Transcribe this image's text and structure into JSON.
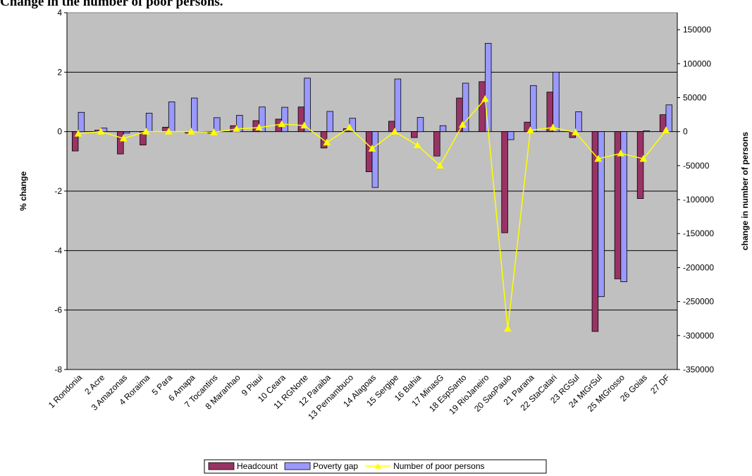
{
  "chart_data": {
    "type": "bar",
    "title": "Change in the number of poor persons.",
    "ylabel_left": "% change",
    "ylabel_right": "change in number of persons",
    "ylim_left": [
      -8,
      4
    ],
    "yticks_left": [
      -8,
      -6,
      -4,
      -2,
      0,
      2,
      4
    ],
    "ylim_right": [
      -350000,
      175000
    ],
    "yticks_right": [
      -350000,
      -300000,
      -250000,
      -200000,
      -150000,
      -100000,
      -50000,
      0,
      50000,
      100000,
      150000
    ],
    "grid": "horizontal",
    "legend_position": "bottom",
    "categories": [
      "1 Rondonia",
      "2 Acre",
      "3 Amazonas",
      "4 Roraima",
      "5 Para",
      "6 Amapa",
      "7 Tocantins",
      "8 Maranhao",
      "9 Piaui",
      "10 Ceara",
      "11 RGNorte",
      "12 Paraiba",
      "13 Pernambuco",
      "14 Alagoas",
      "15 Sergipe",
      "16 Bahia",
      "17 MinasG",
      "18 EspSanto",
      "19 RioJaneiro",
      "20 SaoPaulo",
      "21 Parana",
      "22 StaCatari",
      "23 RGSul",
      "24 MtGrSul",
      "25 MtGrosso",
      "26 Goias",
      "27 DF"
    ],
    "series": [
      {
        "name": "Headcount",
        "axis": "left",
        "kind": "bar",
        "color": "#993366",
        "values": [
          -0.65,
          0.05,
          -0.75,
          -0.45,
          0.15,
          -0.05,
          -0.05,
          0.2,
          0.37,
          0.42,
          0.83,
          -0.55,
          0.1,
          -1.35,
          0.35,
          -0.2,
          -0.82,
          1.13,
          1.68,
          -3.4,
          0.32,
          1.33,
          -0.2,
          -6.72,
          -4.95,
          -2.25,
          0.57
        ]
      },
      {
        "name": "Poverty gap",
        "axis": "left",
        "kind": "bar",
        "color": "#9999ff",
        "values": [
          0.65,
          0.12,
          -0.05,
          0.62,
          1.0,
          1.13,
          0.47,
          0.55,
          0.83,
          0.82,
          1.8,
          0.68,
          0.45,
          -1.88,
          1.77,
          0.48,
          0.2,
          1.63,
          2.97,
          -0.27,
          1.55,
          2.0,
          0.67,
          -5.55,
          -5.05,
          0.03,
          0.9
        ]
      },
      {
        "name": "Number of poor persons",
        "axis": "right",
        "kind": "line",
        "color": "#ffff00",
        "values": [
          -3000,
          0,
          -10000,
          0,
          0,
          0,
          -1000,
          4000,
          6000,
          11000,
          9000,
          -16000,
          6000,
          -25000,
          0,
          -20000,
          -50000,
          10000,
          48000,
          -290000,
          2000,
          6000,
          -1000,
          -40000,
          -32000,
          -40000,
          2000
        ]
      }
    ]
  }
}
